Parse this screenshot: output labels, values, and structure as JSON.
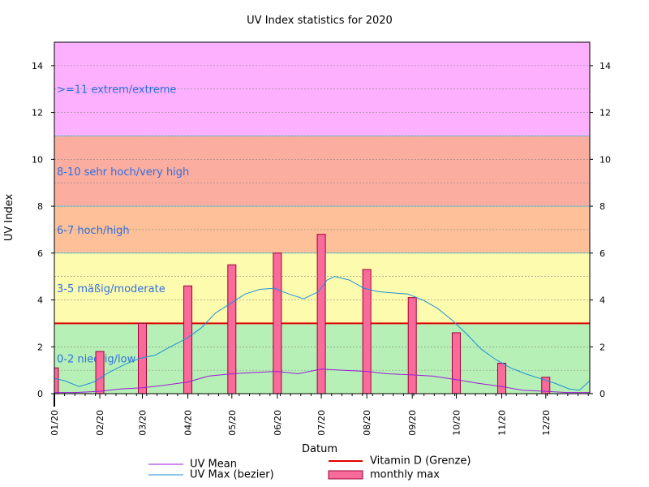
{
  "chart_data": {
    "type": "bar",
    "title": "UV Index statistics for 2020",
    "xlabel": "Datum",
    "ylabel": "UV Index",
    "ylim": [
      0,
      15
    ],
    "xlim": [
      "2020-01-01",
      "2020-12-31"
    ],
    "y_ticks": [
      0,
      2,
      4,
      6,
      8,
      10,
      12,
      14
    ],
    "x_ticks": [
      "01/20",
      "02/20",
      "03/20",
      "04/20",
      "05/20",
      "06/20",
      "07/20",
      "08/20",
      "09/20",
      "10/20",
      "11/20",
      "12/20"
    ],
    "grid": true,
    "legend_position": "bottom",
    "bands": [
      {
        "from": 0,
        "to": 3,
        "label": "0-2 niedrig/low",
        "color": "#b6f0b6"
      },
      {
        "from": 3,
        "to": 6,
        "label": "3-5 mäßig/moderate",
        "color": "#fdfcae"
      },
      {
        "from": 6,
        "to": 8,
        "label": "6-7 hoch/high",
        "color": "#fdc098"
      },
      {
        "from": 8,
        "to": 11,
        "label": "8-10 sehr hoch/very high",
        "color": "#fbada0"
      },
      {
        "from": 11,
        "to": 15,
        "label": ">=11 extrem/extreme",
        "color": "#fdb0fd"
      }
    ],
    "threshold": {
      "name": "Vitamin D (Grenze)",
      "value": 3,
      "color": "#dd0000"
    },
    "series": [
      {
        "name": "monthly max",
        "type": "bar",
        "color": "#f86b9b",
        "x": [
          "2020-01-01",
          "2020-02-01",
          "2020-03-01",
          "2020-04-01",
          "2020-05-01",
          "2020-06-01",
          "2020-07-01",
          "2020-08-01",
          "2020-09-01",
          "2020-10-01",
          "2020-11-01",
          "2020-12-01"
        ],
        "values": [
          1.1,
          1.8,
          3.0,
          4.6,
          5.5,
          6.0,
          6.8,
          5.3,
          4.1,
          2.6,
          1.3,
          0.7
        ]
      },
      {
        "name": "UV Max (bezier)",
        "type": "line",
        "color": "#1f8fd8",
        "x": [
          "2020-01-01",
          "2020-01-08",
          "2020-01-18",
          "2020-01-28",
          "2020-02-07",
          "2020-02-18",
          "2020-02-28",
          "2020-03-10",
          "2020-03-20",
          "2020-03-31",
          "2020-04-10",
          "2020-04-20",
          "2020-04-30",
          "2020-05-10",
          "2020-05-20",
          "2020-05-30",
          "2020-06-09",
          "2020-06-19",
          "2020-06-29",
          "2020-07-05",
          "2020-07-10",
          "2020-07-20",
          "2020-07-30",
          "2020-08-09",
          "2020-08-19",
          "2020-08-29",
          "2020-09-08",
          "2020-09-18",
          "2020-09-28",
          "2020-10-08",
          "2020-10-18",
          "2020-10-28",
          "2020-11-07",
          "2020-11-17",
          "2020-11-27",
          "2020-12-07",
          "2020-12-17",
          "2020-12-24",
          "2020-12-31"
        ],
        "values": [
          0.65,
          0.55,
          0.3,
          0.5,
          0.9,
          1.25,
          1.5,
          1.65,
          2.0,
          2.35,
          2.8,
          3.45,
          3.85,
          4.25,
          4.45,
          4.5,
          4.25,
          4.05,
          4.35,
          4.85,
          5.0,
          4.85,
          4.5,
          4.35,
          4.3,
          4.25,
          4.0,
          3.65,
          3.15,
          2.55,
          1.9,
          1.45,
          1.1,
          0.85,
          0.65,
          0.45,
          0.2,
          0.15,
          0.55
        ]
      },
      {
        "name": "UV Mean",
        "type": "line",
        "color": "#9a1ad8",
        "x": [
          "2020-01-01",
          "2020-01-15",
          "2020-02-01",
          "2020-02-15",
          "2020-03-01",
          "2020-03-15",
          "2020-04-01",
          "2020-04-15",
          "2020-05-01",
          "2020-05-15",
          "2020-06-01",
          "2020-06-15",
          "2020-07-01",
          "2020-07-15",
          "2020-08-01",
          "2020-08-15",
          "2020-09-01",
          "2020-09-15",
          "2020-10-01",
          "2020-10-15",
          "2020-11-01",
          "2020-11-15",
          "2020-12-01",
          "2020-12-15",
          "2020-12-31"
        ],
        "values": [
          0.05,
          0.05,
          0.1,
          0.2,
          0.25,
          0.35,
          0.5,
          0.75,
          0.85,
          0.9,
          0.95,
          0.85,
          1.05,
          1.0,
          0.95,
          0.85,
          0.8,
          0.75,
          0.6,
          0.45,
          0.3,
          0.15,
          0.1,
          0.05,
          0.05
        ]
      }
    ]
  }
}
